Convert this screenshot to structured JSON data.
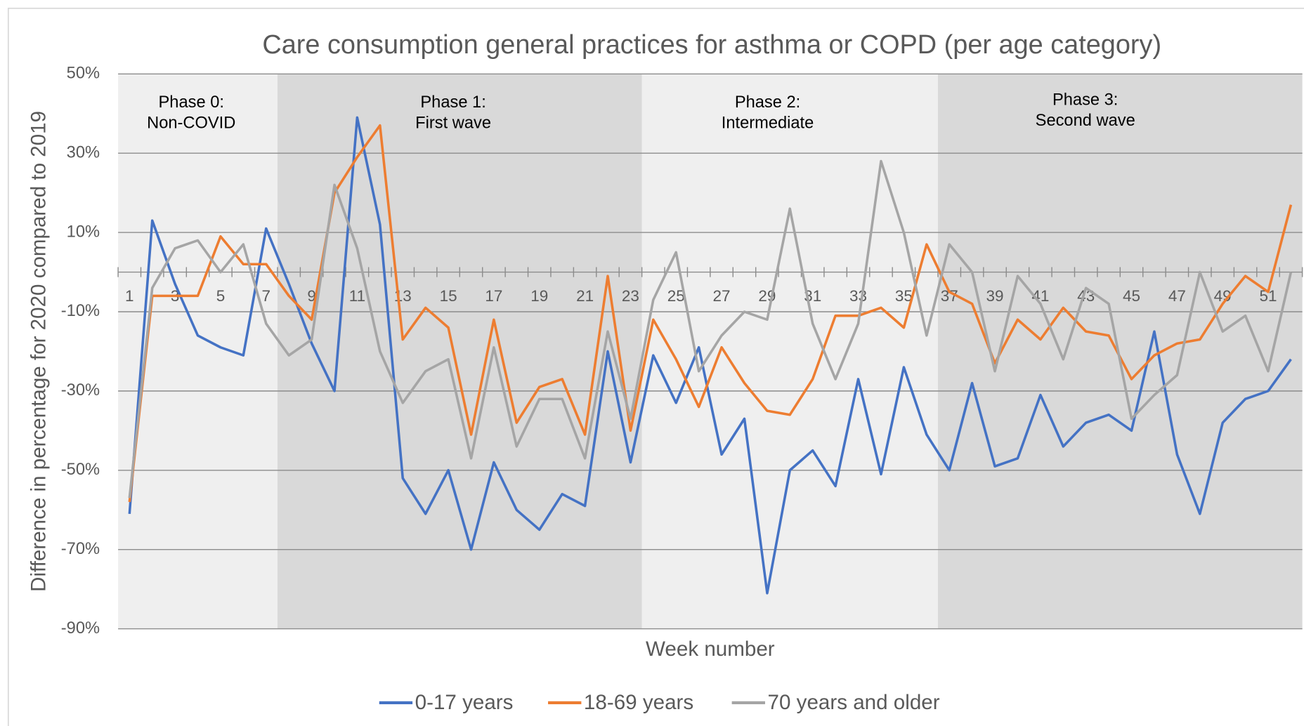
{
  "chart_data": {
    "type": "line",
    "title": "Care consumption general practices for asthma or COPD (per age category)",
    "x_label": "Week number",
    "y_label": "Difference in percentage for 2020 compared to 2019",
    "categories": [
      1,
      null,
      3,
      null,
      5,
      null,
      7,
      null,
      9,
      null,
      11,
      null,
      13,
      null,
      15,
      null,
      17,
      null,
      19,
      null,
      21,
      null,
      23,
      null,
      25,
      null,
      27,
      null,
      29,
      null,
      31,
      null,
      33,
      null,
      35,
      null,
      37,
      null,
      39,
      null,
      41,
      null,
      43,
      null,
      45,
      null,
      47,
      null,
      49,
      null,
      51,
      null
    ],
    "ylim": [
      -90,
      50
    ],
    "yticks": [
      {
        "value": -90,
        "label": "-90%"
      },
      {
        "value": -70,
        "label": "-70%"
      },
      {
        "value": -50,
        "label": "-50%"
      },
      {
        "value": -30,
        "label": "-30%"
      },
      {
        "value": -10,
        "label": "-10%"
      },
      {
        "value": 10,
        "label": "10%"
      },
      {
        "value": 30,
        "label": "30%"
      },
      {
        "value": 50,
        "label": "50%"
      }
    ],
    "grid": true,
    "legend": "bottom",
    "annotations": [
      [
        "Phase 0:",
        "Non-COVID"
      ],
      [
        "Phase 1:",
        "First wave"
      ],
      [
        "Phase 2:",
        "Intermediate"
      ],
      [
        "Phase 3:",
        "Second wave"
      ]
    ],
    "series": [
      {
        "name": "0-17 years",
        "color": "#4472c4",
        "values": [
          -61,
          13,
          -3,
          -16,
          -19,
          -21,
          11,
          -3,
          -18,
          -30,
          39,
          12,
          -52,
          -61,
          -50,
          -70,
          -48,
          -60,
          -65,
          -56,
          -59,
          -20,
          -48,
          -21,
          -33,
          -19,
          -46,
          -37,
          -81,
          -50,
          -45,
          -54,
          -27,
          -51,
          -24,
          -41,
          -50,
          -28,
          -49,
          -47,
          -31,
          -44,
          -38,
          -36,
          -40,
          -15,
          -46,
          -61,
          -38,
          -32,
          -30,
          -22
        ]
      },
      {
        "name": "18-69 years",
        "color": "#ed7d31",
        "values": [
          -58,
          -6,
          -6,
          -6,
          9,
          2,
          2,
          -6,
          -12,
          20,
          29,
          37,
          -17,
          -9,
          -14,
          -41,
          -12,
          -38,
          -29,
          -27,
          -41,
          -1,
          -40,
          -12,
          -22,
          -34,
          -19,
          -28,
          -35,
          -36,
          -27,
          -11,
          -11,
          -9,
          -14,
          7,
          -5,
          -8,
          -23,
          -12,
          -17,
          -9,
          -15,
          -16,
          -27,
          -21,
          -18,
          -17,
          -8,
          -1,
          -5,
          17
        ]
      },
      {
        "name": "70 years and older",
        "color": "#a5a5a5",
        "values": [
          -57,
          -4,
          6,
          8,
          0,
          7,
          -13,
          -21,
          -17,
          22,
          6,
          -20,
          -33,
          -25,
          -22,
          -47,
          -19,
          -44,
          -32,
          -32,
          -47,
          -15,
          -37,
          -7,
          5,
          -25,
          -16,
          -10,
          -12,
          16,
          -13,
          -27,
          -13,
          28,
          10,
          -16,
          7,
          0,
          -25,
          -1,
          -8,
          -22,
          -4,
          -8,
          -37,
          -31,
          -26,
          0,
          -15,
          -11,
          -25,
          0
        ]
      }
    ]
  }
}
